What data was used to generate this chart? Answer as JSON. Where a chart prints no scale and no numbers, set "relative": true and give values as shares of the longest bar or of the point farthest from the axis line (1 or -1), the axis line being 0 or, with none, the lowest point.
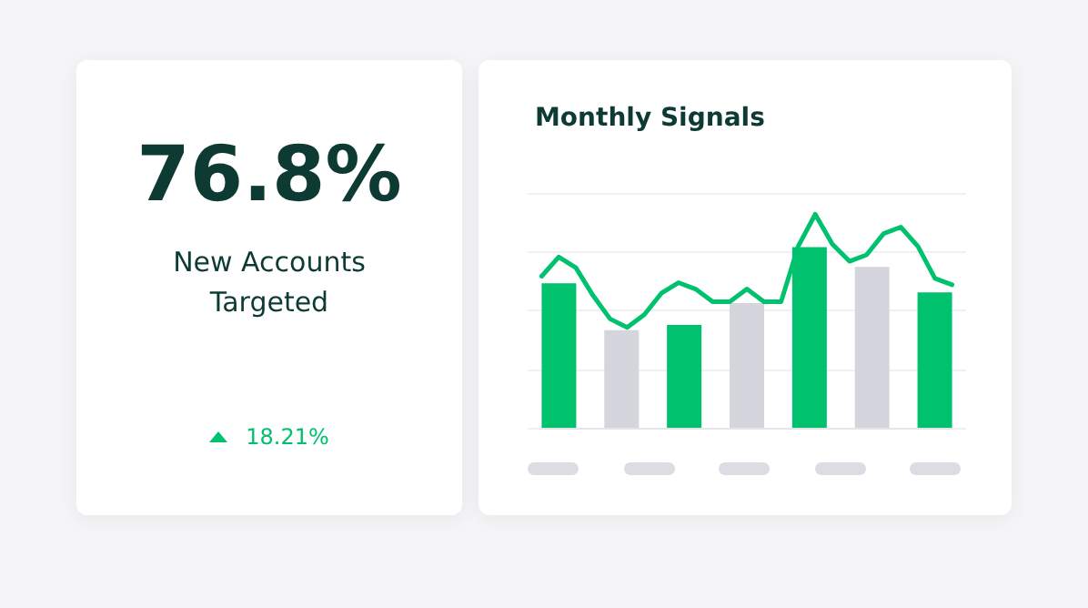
{
  "chart_data": [
    {
      "type": "other",
      "title": "76.8%",
      "subtitle": "New Accounts Targeted",
      "annotations": [
        "18.21%"
      ]
    },
    {
      "type": "bar",
      "title": "Monthly Signals",
      "relative": true,
      "grid": "y",
      "categories": [
        null,
        null,
        null,
        null,
        null,
        null,
        null
      ],
      "colors": [
        "#00c16e",
        "#d5d5de",
        "#00c16e",
        "#d5d5de",
        "#00c16e",
        "#d5d5de",
        "#00c16e"
      ],
      "values": [
        0.8,
        0.54,
        0.57,
        0.69,
        1,
        0.89,
        0.75
      ]
    },
    {
      "type": "line",
      "relative": true,
      "color": "#00c16e",
      "categories": [
        null,
        null,
        null,
        null,
        null,
        null,
        null,
        null,
        null,
        null,
        null,
        null,
        null,
        null,
        null,
        null,
        null,
        null,
        null,
        null,
        null,
        null,
        null,
        null,
        null
      ],
      "values": [
        0.71,
        0.8,
        0.75,
        0.62,
        0.51,
        0.47,
        0.53,
        0.63,
        0.68,
        0.65,
        0.59,
        0.59,
        0.65,
        0.59,
        0.59,
        0.85,
        1,
        0.86,
        0.78,
        0.81,
        0.91,
        0.94,
        0.85,
        0.7,
        0.67
      ]
    }
  ]
}
